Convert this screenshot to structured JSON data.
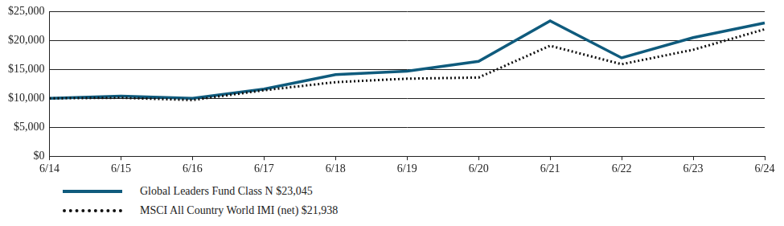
{
  "chart_data": {
    "type": "line",
    "categories": [
      "6/14",
      "6/15",
      "6/16",
      "6/17",
      "6/18",
      "6/19",
      "6/20",
      "6/21",
      "6/22",
      "6/23",
      "6/24"
    ],
    "series": [
      {
        "name": "Global Leaders Fund Class N $23,045",
        "color": "#0f5b7d",
        "line_style": "solid",
        "values": [
          10000,
          10400,
          10000,
          11600,
          14100,
          14700,
          16400,
          23400,
          17000,
          20500,
          23045
        ]
      },
      {
        "name": "MSCI All Country World IMI (net) $21,938",
        "color": "#111111",
        "line_style": "dotted",
        "values": [
          10000,
          10100,
          9700,
          11400,
          12800,
          13400,
          13600,
          19100,
          15900,
          18400,
          21938
        ]
      }
    ],
    "ylim": [
      0,
      25000
    ],
    "yticks": [
      {
        "value": 0,
        "label": "$0"
      },
      {
        "value": 5000,
        "label": "$5,000"
      },
      {
        "value": 10000,
        "label": "$10,000"
      },
      {
        "value": 15000,
        "label": "$15,000"
      },
      {
        "value": 20000,
        "label": "$20,000"
      },
      {
        "value": 25000,
        "label": "$25,000"
      }
    ],
    "grid": true
  }
}
